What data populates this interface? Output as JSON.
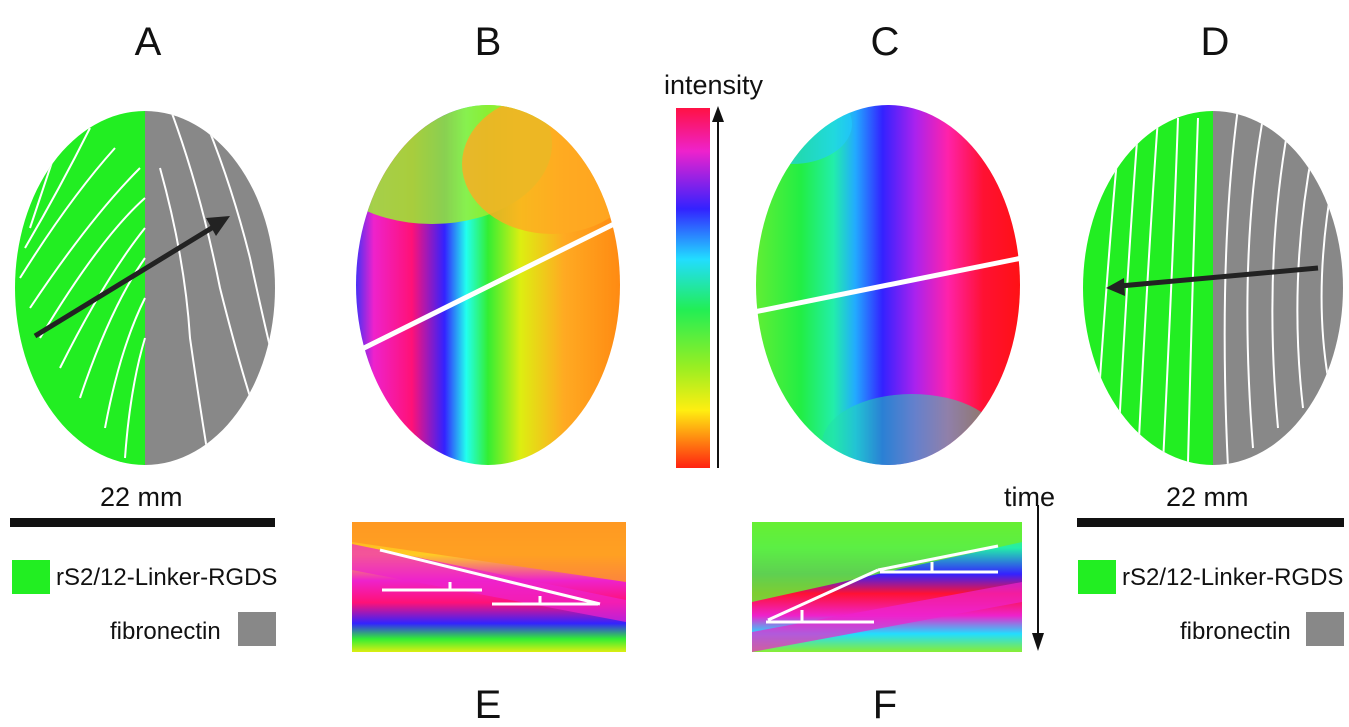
{
  "panels": {
    "a": {
      "label": "A",
      "scale": "22 mm"
    },
    "b": {
      "label": "B"
    },
    "c": {
      "label": "C"
    },
    "d": {
      "label": "D",
      "scale": "22 mm"
    },
    "e": {
      "label": "E"
    },
    "f": {
      "label": "F"
    }
  },
  "legend": {
    "material_1": "rS2/12-Linker-RGDS",
    "material_2": "fibronectin"
  },
  "colorbar": {
    "label": "intensity"
  },
  "time_axis": {
    "label": "time"
  },
  "colors": {
    "material_1": "#22ee22",
    "material_2": "#888888",
    "bar": "#111111"
  }
}
